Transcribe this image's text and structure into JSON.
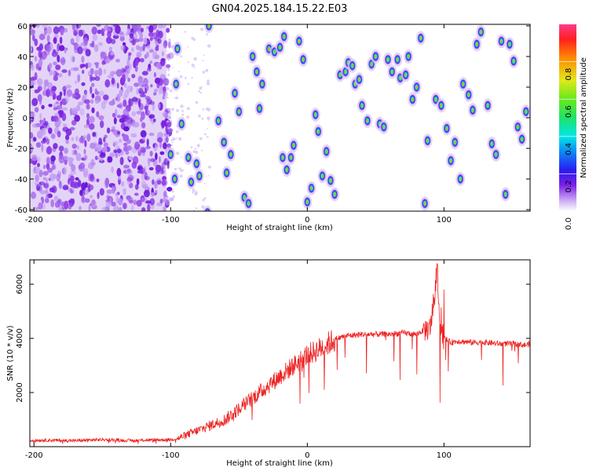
{
  "title": "GN04.2025.184.15.22.E03",
  "colors": {
    "snr_line": "#ee2222",
    "frame": "#000000"
  },
  "chart_data": [
    {
      "type": "heatmap",
      "xlabel": "Height of straight line (km)",
      "ylabel": "Frequency (Hz)",
      "xlim": [
        -203,
        163
      ],
      "ylim": [
        -61,
        61
      ],
      "xticks": [
        -200,
        -100,
        0,
        100
      ],
      "yticks": [
        -60,
        -40,
        -20,
        0,
        20,
        40,
        60
      ],
      "colorbar": {
        "label": "Normalized spectral amplitude",
        "range": [
          0,
          1
        ],
        "ticks": [
          0.0,
          0.2,
          0.4,
          0.6,
          0.8
        ]
      },
      "blobs": [
        {
          "x": -95,
          "y": 45
        },
        {
          "x": -96,
          "y": 22
        },
        {
          "x": -92,
          "y": -4
        },
        {
          "x": -100,
          "y": -24
        },
        {
          "x": -97,
          "y": -40
        },
        {
          "x": -87,
          "y": -26
        },
        {
          "x": -81,
          "y": -30
        },
        {
          "x": -79,
          "y": -38
        },
        {
          "x": -85,
          "y": -42
        },
        {
          "x": -73,
          "y": -62
        },
        {
          "x": -72,
          "y": 60
        },
        {
          "x": -65,
          "y": -2
        },
        {
          "x": -61,
          "y": -16
        },
        {
          "x": -59,
          "y": -36
        },
        {
          "x": -56,
          "y": -24
        },
        {
          "x": -53,
          "y": 16
        },
        {
          "x": -50,
          "y": 4
        },
        {
          "x": -46,
          "y": -52
        },
        {
          "x": -43,
          "y": -56
        },
        {
          "x": -40,
          "y": 40
        },
        {
          "x": -37,
          "y": 30
        },
        {
          "x": -35,
          "y": 6
        },
        {
          "x": -33,
          "y": 22
        },
        {
          "x": -28,
          "y": 45
        },
        {
          "x": -24,
          "y": 43
        },
        {
          "x": -20,
          "y": 46
        },
        {
          "x": -17,
          "y": 53
        },
        {
          "x": -18,
          "y": -26
        },
        {
          "x": -15,
          "y": -34
        },
        {
          "x": -12,
          "y": -26
        },
        {
          "x": -10,
          "y": -18
        },
        {
          "x": -6,
          "y": 50
        },
        {
          "x": -3,
          "y": 38
        },
        {
          "x": 0,
          "y": -55
        },
        {
          "x": 3,
          "y": -46
        },
        {
          "x": 6,
          "y": 2
        },
        {
          "x": 8,
          "y": -9
        },
        {
          "x": 11,
          "y": -38
        },
        {
          "x": 14,
          "y": -22
        },
        {
          "x": 17,
          "y": -41
        },
        {
          "x": 20,
          "y": -50
        },
        {
          "x": 24,
          "y": 28
        },
        {
          "x": 28,
          "y": 30
        },
        {
          "x": 30,
          "y": 36
        },
        {
          "x": 33,
          "y": 34
        },
        {
          "x": 35,
          "y": 22
        },
        {
          "x": 38,
          "y": 25
        },
        {
          "x": 40,
          "y": 8
        },
        {
          "x": 44,
          "y": -2
        },
        {
          "x": 47,
          "y": 35
        },
        {
          "x": 50,
          "y": 40
        },
        {
          "x": 53,
          "y": -4
        },
        {
          "x": 56,
          "y": -6
        },
        {
          "x": 59,
          "y": 38
        },
        {
          "x": 62,
          "y": 30
        },
        {
          "x": 66,
          "y": 38
        },
        {
          "x": 68,
          "y": 26
        },
        {
          "x": 72,
          "y": 28
        },
        {
          "x": 74,
          "y": 40
        },
        {
          "x": 77,
          "y": 12
        },
        {
          "x": 80,
          "y": 20
        },
        {
          "x": 83,
          "y": 52
        },
        {
          "x": 86,
          "y": -56
        },
        {
          "x": 88,
          "y": -15
        },
        {
          "x": 94,
          "y": 12
        },
        {
          "x": 98,
          "y": 8
        },
        {
          "x": 102,
          "y": -7
        },
        {
          "x": 105,
          "y": -28
        },
        {
          "x": 108,
          "y": -16
        },
        {
          "x": 112,
          "y": -40
        },
        {
          "x": 114,
          "y": 22
        },
        {
          "x": 118,
          "y": 15
        },
        {
          "x": 121,
          "y": 5
        },
        {
          "x": 124,
          "y": 48
        },
        {
          "x": 127,
          "y": 56
        },
        {
          "x": 132,
          "y": 8
        },
        {
          "x": 135,
          "y": -17
        },
        {
          "x": 138,
          "y": -24
        },
        {
          "x": 142,
          "y": 50
        },
        {
          "x": 145,
          "y": -50
        },
        {
          "x": 148,
          "y": 48
        },
        {
          "x": 151,
          "y": 37
        },
        {
          "x": 154,
          "y": -6
        },
        {
          "x": 157,
          "y": -14
        },
        {
          "x": 160,
          "y": 4
        }
      ]
    },
    {
      "type": "line",
      "xlabel": "Height of straight line (km)",
      "ylabel": "SNR (10 * v/v)",
      "xlim": [
        -203,
        163
      ],
      "ylim": [
        0,
        6900
      ],
      "xticks": [
        -200,
        -100,
        0,
        100
      ],
      "yticks": [
        2000,
        4000,
        6000
      ],
      "series": [
        {
          "x": [
            -203,
            -190,
            -170,
            -150,
            -130,
            -110,
            -100,
            -95,
            -90,
            -85,
            -80,
            -75,
            -70,
            -65,
            -60,
            -55,
            -50,
            -45,
            -40,
            -35,
            -30,
            -25,
            -20,
            -15,
            -10,
            -5,
            0,
            5,
            10,
            15,
            20,
            25,
            30,
            35,
            40,
            50,
            60,
            70,
            80,
            85,
            90,
            93,
            95,
            97,
            100,
            105,
            110,
            120,
            130,
            140,
            150,
            160,
            163
          ],
          "y": [
            230,
            240,
            220,
            260,
            230,
            250,
            260,
            300,
            400,
            500,
            600,
            700,
            800,
            900,
            1000,
            1200,
            1400,
            1600,
            1800,
            2000,
            2200,
            2400,
            2600,
            2800,
            3000,
            3200,
            3400,
            3500,
            3650,
            3800,
            3950,
            4050,
            4100,
            4120,
            4150,
            4150,
            4150,
            4200,
            4150,
            4300,
            4400,
            5500,
            6800,
            4500,
            4000,
            3850,
            3900,
            3850,
            3850,
            3800,
            3800,
            3750,
            3800
          ]
        }
      ]
    }
  ]
}
